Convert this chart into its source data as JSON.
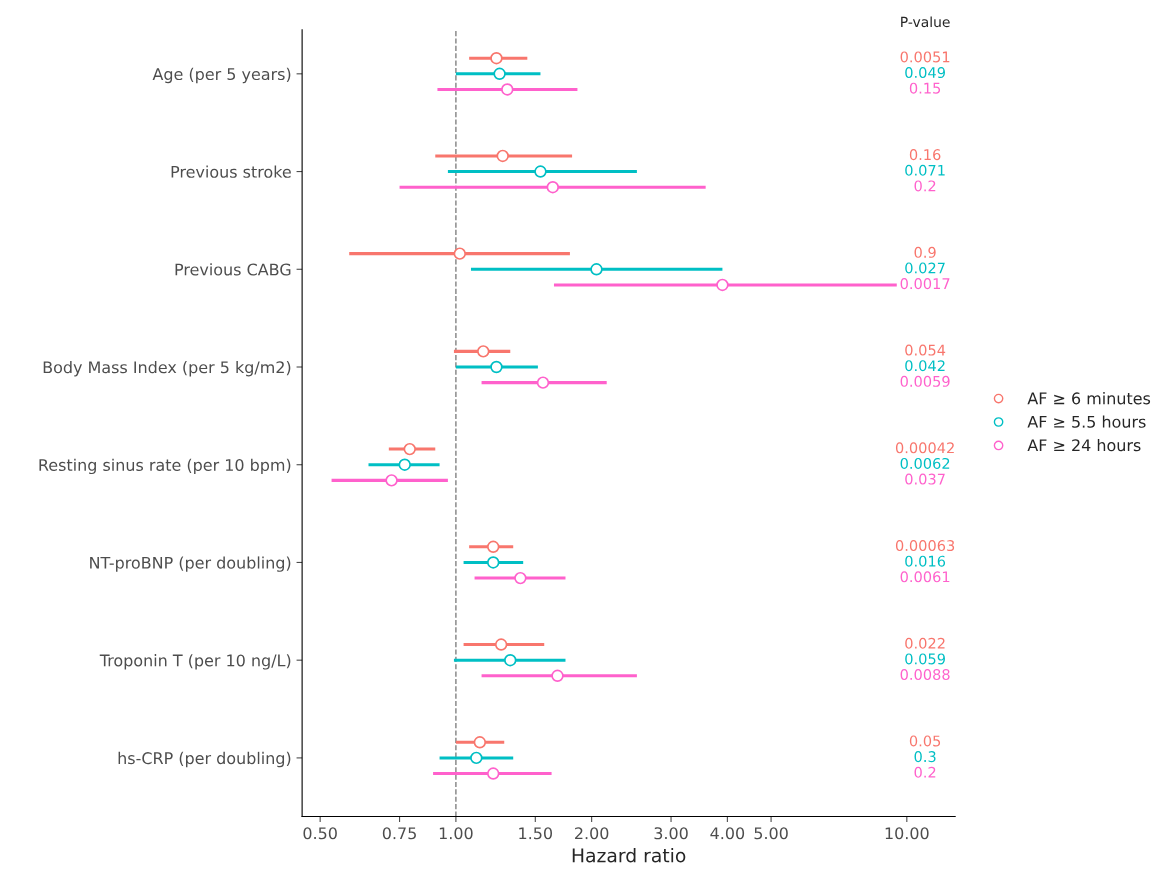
{
  "chart_data": {
    "type": "scatter",
    "orientation": "horizontal",
    "categories": [
      "Age (per 5 years)",
      "Previous stroke",
      "Previous CABG",
      "Body Mass Index (per 5 kg/m2)",
      "Resting sinus rate (per 10 bpm)",
      "NT-proBNP (per doubling)",
      "Troponin T (per 10 ng/L)",
      "hs-CRP (per doubling)"
    ],
    "series": [
      {
        "name": "AF ≥ 6 minutes",
        "color": "#F8766D",
        "values": [
          1.23,
          1.27,
          1.02,
          1.15,
          0.79,
          1.21,
          1.26,
          1.13
        ],
        "errors": [
          [
            1.07,
            1.44
          ],
          [
            0.9,
            1.81
          ],
          [
            0.58,
            1.79
          ],
          [
            0.99,
            1.32
          ],
          [
            0.71,
            0.9
          ],
          [
            1.07,
            1.34
          ],
          [
            1.04,
            1.57
          ],
          [
            1.0,
            1.28
          ]
        ]
      },
      {
        "name": "AF ≥ 5.5 hours",
        "color": "#00BFC4",
        "values": [
          1.25,
          1.54,
          2.05,
          1.23,
          0.77,
          1.21,
          1.32,
          1.11
        ],
        "errors": [
          [
            1.0,
            1.54
          ],
          [
            0.96,
            2.52
          ],
          [
            1.08,
            3.9
          ],
          [
            1.0,
            1.52
          ],
          [
            0.64,
            0.92
          ],
          [
            1.04,
            1.41
          ],
          [
            0.99,
            1.75
          ],
          [
            0.92,
            1.34
          ]
        ]
      },
      {
        "name": "AF ≥ 24 hours",
        "color": "#FF61CC",
        "values": [
          1.3,
          1.64,
          3.9,
          1.56,
          0.72,
          1.39,
          1.68,
          1.21
        ],
        "errors": [
          [
            0.91,
            1.86
          ],
          [
            0.75,
            3.58
          ],
          [
            1.65,
            9.5
          ],
          [
            1.14,
            2.16
          ],
          [
            0.53,
            0.96
          ],
          [
            1.1,
            1.75
          ],
          [
            1.14,
            2.52
          ],
          [
            0.89,
            1.63
          ]
        ]
      }
    ],
    "xlabel": "Hazard ratio",
    "log": "x",
    "xlim": [
      0.456,
      12.8
    ],
    "xticks": [
      {
        "value": 0.5,
        "label": "0.50"
      },
      {
        "value": 0.75,
        "label": "0.75"
      },
      {
        "value": 1,
        "label": "1.00"
      },
      {
        "value": 1.5,
        "label": "1.50"
      },
      {
        "value": 2,
        "label": "2.00"
      },
      {
        "value": 3,
        "label": "3.00"
      },
      {
        "value": 4,
        "label": "4.00"
      },
      {
        "value": 5,
        "label": "5.00"
      },
      {
        "value": 10,
        "label": "10.00"
      }
    ],
    "ref_lines": [
      {
        "axis": "x",
        "value": 1,
        "line_style": "dashed",
        "color": "#808080"
      }
    ],
    "annotations": [
      "P-value",
      "0.0051",
      "0.049",
      "0.15",
      "0.16",
      "0.071",
      "0.2",
      "0.9",
      "0.027",
      "0.0017",
      "0.054",
      "0.042",
      "0.0059",
      "0.00042",
      "0.0062",
      "0.037",
      "0.00063",
      "0.016",
      "0.0061",
      "0.022",
      "0.059",
      "0.0088",
      "0.05",
      "0.3",
      "0.2"
    ],
    "marker": "circle",
    "legend": "right",
    "grid": false
  }
}
